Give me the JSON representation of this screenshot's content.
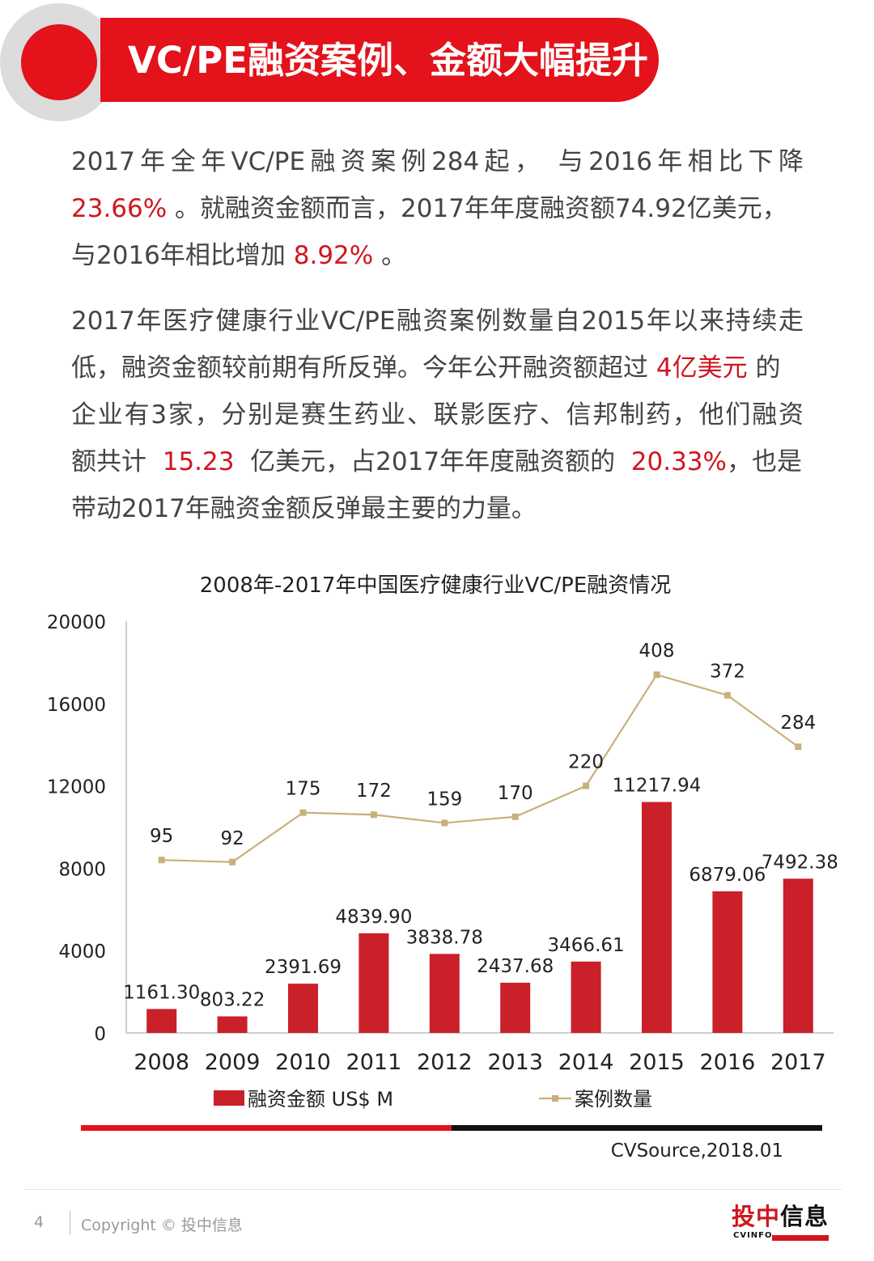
{
  "header": {
    "title": "VC/PE融资案例、金额大幅提升"
  },
  "paragraph1": {
    "line1": "2017年全年VC/PE融资案例284起， 与2016年相比下降",
    "line2_red": "23.66%",
    "line2_rest": " 。就融资金额而言，2017年年度融资额74.92亿美元，",
    "line3_a": "与2016年相比增加 ",
    "line3_red": "8.92%",
    "line3_b": " 。"
  },
  "paragraph2": {
    "line1": "2017年医疗健康行业VC/PE融资案例数量自2015年以来持续走",
    "line2_a": "低，融资金额较前期有所反弹。今年公开融资额超过 ",
    "line2_red": "4亿美元",
    "line2_b": " 的",
    "line3": "企业有3家，分别是赛生药业、联影医疗、信邦制药，他们融资",
    "line4_a": "额共计  ",
    "line4_red1": "15.23",
    "line4_b": "  亿美元，占2017年年度融资额的  ",
    "line4_red2": "20.33%",
    "line4_c": "，也是",
    "line5": "带动2017年融资金额反弹最主要的力量。"
  },
  "chart_data": {
    "type": "bar",
    "title": "2008年-2017年中国医疗健康行业VC/PE融资情况",
    "categories": [
      "2008",
      "2009",
      "2010",
      "2011",
      "2012",
      "2013",
      "2014",
      "2015",
      "2016",
      "2017"
    ],
    "ylim": [
      0,
      20000
    ],
    "yticks": [
      0,
      4000,
      8000,
      12000,
      16000,
      20000
    ],
    "series": [
      {
        "name": "融资金额 US$ M",
        "type": "bar",
        "color": "#c9202a",
        "values": [
          1161.3,
          803.22,
          2391.69,
          4839.9,
          3838.78,
          2437.68,
          3466.61,
          11217.94,
          6879.06,
          7492.38
        ],
        "labels": [
          "1161.30",
          "803.22",
          "2391.69",
          "4839.90",
          "3838.78",
          "2437.68",
          "3466.61",
          "11217.94",
          "6879.06",
          "7492.38"
        ]
      },
      {
        "name": "案例数量",
        "type": "line",
        "color": "#c8b07a",
        "values": [
          95,
          92,
          175,
          172,
          159,
          170,
          220,
          408,
          372,
          284
        ],
        "labels": [
          "95",
          "92",
          "175",
          "172",
          "159",
          "170",
          "220",
          "408",
          "372",
          "284"
        ],
        "plotted_y": [
          8400,
          8300,
          10700,
          10600,
          10200,
          10500,
          12000,
          17400,
          16400,
          13900
        ]
      }
    ],
    "legend_position": "bottom",
    "source": "CVSource,2018.01"
  },
  "footer": {
    "page": "4",
    "copyright": "Copyright © 投中信息",
    "logo_cn_red": "投中",
    "logo_cn_dark": "信息",
    "logo_en": "CVINFO"
  }
}
